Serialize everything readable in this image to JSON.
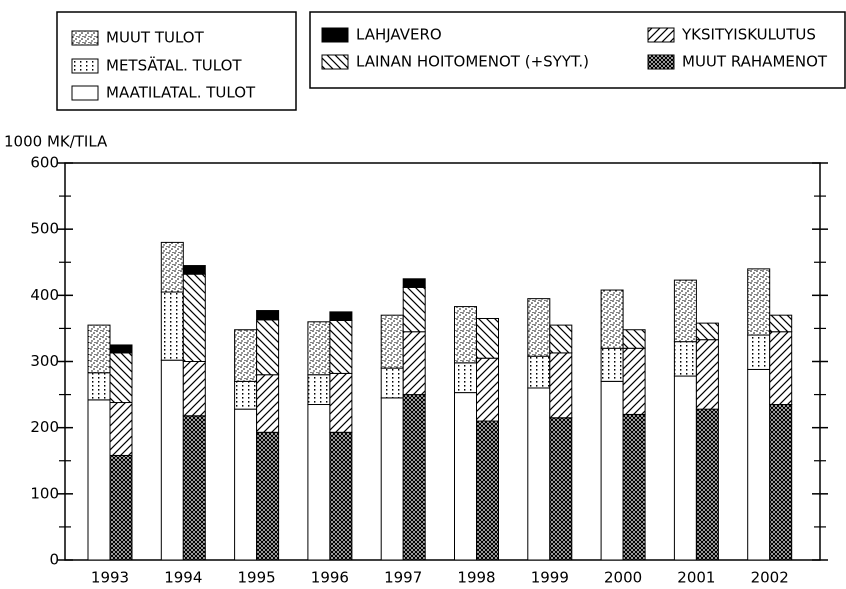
{
  "chart_data": {
    "type": "stacked_bar",
    "y_label": "1000 MK/TILA",
    "categories": [
      "1993",
      "1994",
      "1995",
      "1996",
      "1997",
      "1998",
      "1999",
      "2000",
      "2001",
      "2002"
    ],
    "ylim": [
      0,
      600
    ],
    "yticks": [
      0,
      100,
      200,
      300,
      400,
      500,
      600
    ],
    "series": [
      {
        "name": "MAATILATAL. TULOT",
        "stack": 1,
        "fill": "url(#p-white)",
        "values": [
          242,
          302,
          228,
          235,
          245,
          253,
          260,
          270,
          278,
          288
        ]
      },
      {
        "name": "METSÄTAL. TULOT",
        "stack": 1,
        "fill": "url(#p-vdots)",
        "values": [
          41,
          103,
          42,
          45,
          45,
          45,
          48,
          50,
          52,
          52
        ]
      },
      {
        "name": "MUUT TULOT",
        "stack": 1,
        "fill": "url(#p-stipple)",
        "values": [
          72,
          75,
          78,
          80,
          80,
          85,
          87,
          88,
          93,
          100
        ]
      },
      {
        "name": "MUUT RAHAMENOT",
        "stack": 2,
        "fill": "url(#p-cross)",
        "values": [
          158,
          218,
          193,
          193,
          250,
          210,
          215,
          220,
          228,
          235
        ]
      },
      {
        "name": "YKSITYISKULUTUS",
        "stack": 2,
        "fill": "url(#p-fwd)",
        "values": [
          80,
          82,
          87,
          89,
          95,
          95,
          98,
          100,
          105,
          110
        ]
      },
      {
        "name": "LAINAN HOITOMENOT (+SYYT.)",
        "stack": 2,
        "fill": "url(#p-back)",
        "values": [
          75,
          132,
          83,
          80,
          67,
          60,
          42,
          28,
          25,
          25
        ]
      },
      {
        "name": "LAHJAVERO",
        "stack": 2,
        "fill": "#000",
        "values": [
          12,
          13,
          14,
          13,
          13,
          0,
          0,
          0,
          0,
          0
        ]
      }
    ]
  }
}
